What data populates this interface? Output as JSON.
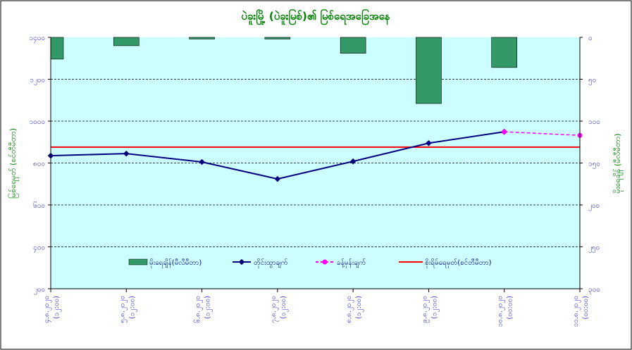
{
  "chart_data": {
    "type": "bar+line",
    "title": "ပဲခူးမြို့ (ပဲခူးမြစ်)၏ မြစ်ရေအခြေအနေ",
    "ylabel_left": "မြစ်ရေမှတ် (စင်တီမီတာ)",
    "ylabel_right": "မိုးရေချိန် (မီလီမီတာ)",
    "categories": [
      [
        "၄.၈.၂၀၂၀",
        "(၁၂:၀၀)"
      ],
      [
        "၅.၈.၂၀၂၀",
        "(၁၂:၀၀)"
      ],
      [
        "၆.၈.၂၀၂၀",
        "(၁၂:၀၀)"
      ],
      [
        "၇.၈.၂၀၂၀",
        "(၁၂:၀၀)"
      ],
      [
        "၈.၈.၂၀၂၀",
        "(၁၂:၀၀)"
      ],
      [
        "၉.၈.၂၀၂၀",
        "(၁၂:၀၀)"
      ],
      [
        "၁၀.၈.၂၀၂၀",
        "(၀၀:၀၀)"
      ],
      [
        "၁၁.၈.၂၀၂၀",
        "(၀၀:၀၀)"
      ]
    ],
    "left_axis": {
      "range": [
        200,
        1400
      ],
      "ticks": [
        200,
        400,
        600,
        800,
        1000,
        1200,
        1400
      ],
      "tick_labels": [
        "၂၀၀",
        "၄၀၀",
        "၆၀၀",
        "၈၀၀",
        "၁၀၀၀",
        "၁၂၀၀",
        "၁၄၀၀"
      ]
    },
    "right_axis": {
      "range": [
        0,
        300
      ],
      "inverted": true,
      "ticks": [
        0,
        50,
        100,
        150,
        200,
        250,
        300
      ],
      "tick_labels": [
        "၀",
        "၅၀",
        "၁၀၀",
        "၁၅၀",
        "၂၀၀",
        "၂၅၀",
        "၃၀၀"
      ]
    },
    "series": [
      {
        "name": "မိုးရေချိန်(မီလီမီတာ)",
        "type": "bar",
        "axis": "right",
        "color": "#339966",
        "values": [
          26,
          10,
          2,
          2,
          19,
          79,
          36,
          null
        ]
      },
      {
        "name": "တိုင်းထွာချက်",
        "type": "line",
        "axis": "left",
        "color": "#000080",
        "values": [
          835,
          845,
          805,
          724,
          808,
          895,
          949,
          null
        ]
      },
      {
        "name": "ခန့်မှန်းချက်",
        "type": "line-dashed",
        "axis": "left",
        "color": "#ff00ff",
        "values": [
          null,
          null,
          null,
          null,
          null,
          null,
          949,
          932
        ]
      },
      {
        "name": "စိုးရိမ်ရေမှတ်(စင်တီမီတာ)",
        "type": "hline",
        "axis": "left",
        "color": "#ff0000",
        "value": 876
      }
    ],
    "grid": true,
    "legend_position": "bottom-inside"
  }
}
